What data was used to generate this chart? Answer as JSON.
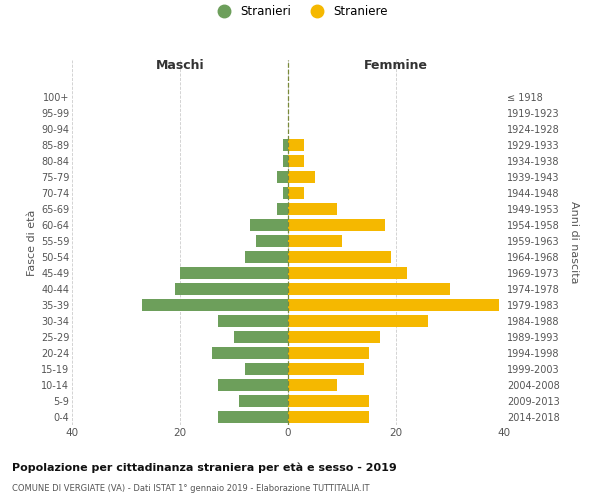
{
  "age_groups": [
    "0-4",
    "5-9",
    "10-14",
    "15-19",
    "20-24",
    "25-29",
    "30-34",
    "35-39",
    "40-44",
    "45-49",
    "50-54",
    "55-59",
    "60-64",
    "65-69",
    "70-74",
    "75-79",
    "80-84",
    "85-89",
    "90-94",
    "95-99",
    "100+"
  ],
  "birth_years": [
    "2014-2018",
    "2009-2013",
    "2004-2008",
    "1999-2003",
    "1994-1998",
    "1989-1993",
    "1984-1988",
    "1979-1983",
    "1974-1978",
    "1969-1973",
    "1964-1968",
    "1959-1963",
    "1954-1958",
    "1949-1953",
    "1944-1948",
    "1939-1943",
    "1934-1938",
    "1929-1933",
    "1924-1928",
    "1919-1923",
    "≤ 1918"
  ],
  "males": [
    13,
    9,
    13,
    8,
    14,
    10,
    13,
    27,
    21,
    20,
    8,
    6,
    7,
    2,
    1,
    2,
    1,
    1,
    0,
    0,
    0
  ],
  "females": [
    15,
    15,
    9,
    14,
    15,
    17,
    26,
    39,
    30,
    22,
    19,
    10,
    18,
    9,
    3,
    5,
    3,
    3,
    0,
    0,
    0
  ],
  "male_color": "#6d9f5b",
  "female_color": "#f5b800",
  "grid_color": "#cccccc",
  "title": "Popolazione per cittadinanza straniera per età e sesso - 2019",
  "subtitle": "COMUNE DI VERGIATE (VA) - Dati ISTAT 1° gennaio 2019 - Elaborazione TUTTITALIA.IT",
  "header_left": "Maschi",
  "header_right": "Femmine",
  "ylabel_left": "Fasce di età",
  "ylabel_right": "Anni di nascita",
  "legend_males": "Stranieri",
  "legend_females": "Straniere",
  "xlim": 40,
  "bar_height": 0.75
}
